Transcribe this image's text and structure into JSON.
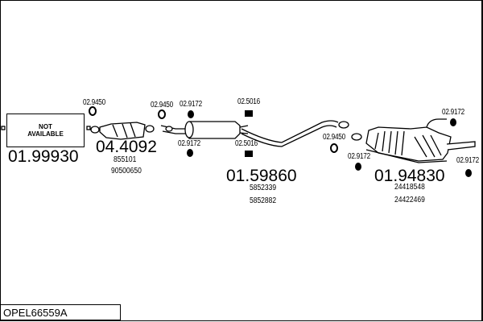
{
  "diagram_code": "OPEL66559A",
  "not_available": {
    "line1": "NOT",
    "line2": "AVAILABLE"
  },
  "parts": [
    {
      "number": "01.99930"
    },
    {
      "number": "04.4092",
      "refs": [
        "855101",
        "90500650"
      ]
    },
    {
      "number": "01.59860",
      "refs": [
        "5852339",
        "5852882"
      ]
    },
    {
      "number": "01.94830",
      "refs": [
        "24418548",
        "24422469"
      ]
    }
  ],
  "fittings": [
    "02.9450",
    "02.9450",
    "02.9172",
    "02.9172",
    "02.5016",
    "02.5016",
    "02.9450",
    "02.9172",
    "02.9172",
    "02.9172"
  ]
}
